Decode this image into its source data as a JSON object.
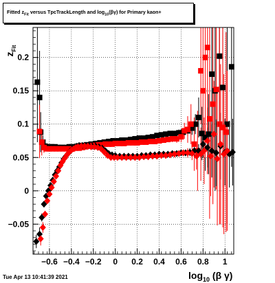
{
  "title": {
    "pre": "Fitted  z",
    "sub1": "Fit",
    "mid": " versus TpcTrackLength and log",
    "sub2": "10",
    "post": "(βγ) for Primary kaon+"
  },
  "timestamp": "Tue Apr 13 10:41:39 2021",
  "chart_data": {
    "type": "scatter",
    "title": "Fitted z_Fit versus TpcTrackLength and log10(βγ) for Primary kaon+",
    "xlabel": "log10(βγ)",
    "ylabel": "z_Fit",
    "xlim": [
      -0.75,
      1.08
    ],
    "ylim": [
      -0.095,
      0.245
    ],
    "xticks": [
      -0.6,
      -0.4,
      -0.2,
      0,
      0.2,
      0.4,
      0.6,
      0.8,
      1
    ],
    "xtick_labels": [
      "−0.6",
      "−0.4",
      "−0.2",
      "0",
      "0.2",
      "0.4",
      "0.6",
      "0.8",
      "1"
    ],
    "yticks": [
      -0.05,
      0,
      0.05,
      0.1,
      0.15,
      0.2
    ],
    "ytick_labels": [
      "−0.05",
      "0",
      "0.05",
      "0.1",
      "0.15",
      "0.2"
    ],
    "grid": true,
    "colors": {
      "black": "#000000",
      "red": "#ff0000"
    },
    "series": [
      {
        "color": "black",
        "marker": "square",
        "x": [
          -0.71,
          -0.69,
          -0.68,
          -0.66,
          -0.64,
          -0.62,
          -0.6,
          -0.58,
          -0.55,
          -0.52,
          -0.5,
          -0.48,
          -0.45,
          -0.42,
          -0.4,
          -0.37,
          -0.34,
          -0.3,
          -0.26,
          -0.22,
          -0.18,
          -0.14,
          -0.1,
          -0.06,
          -0.02,
          0.02,
          0.06,
          0.1,
          0.14,
          0.18,
          0.22,
          0.26,
          0.3,
          0.34,
          0.38,
          0.42,
          0.46,
          0.5,
          0.54,
          0.58,
          0.62,
          0.66,
          0.7,
          0.73,
          0.76,
          0.79,
          0.82,
          0.85,
          0.88,
          0.91,
          0.95,
          0.98,
          1.02,
          1.06
        ],
        "y": [
          0.163,
          0.14,
          0.088,
          0.073,
          0.067,
          0.066,
          0.066,
          0.066,
          0.066,
          0.065,
          0.065,
          0.065,
          0.065,
          0.066,
          0.066,
          0.066,
          0.067,
          0.068,
          0.069,
          0.07,
          0.071,
          0.072,
          0.073,
          0.074,
          0.075,
          0.075,
          0.076,
          0.076,
          0.077,
          0.078,
          0.079,
          0.079,
          0.08,
          0.081,
          0.083,
          0.084,
          0.085,
          0.086,
          0.086,
          0.087,
          0.088,
          0.09,
          0.094,
          0.1,
          0.11,
          0.086,
          0.08,
          0.085,
          0.175,
          0.15,
          0.202,
          0.155,
          0.1,
          0.186
        ],
        "err": [
          0.09,
          0.07,
          0.03,
          0.01,
          0.005,
          0.003,
          0.003,
          0.002,
          0.002,
          0.002,
          0.002,
          0.002,
          0.002,
          0.002,
          0.002,
          0.002,
          0.002,
          0.002,
          0.002,
          0.002,
          0.002,
          0.002,
          0.002,
          0.002,
          0.002,
          0.002,
          0.002,
          0.002,
          0.002,
          0.002,
          0.002,
          0.002,
          0.002,
          0.002,
          0.003,
          0.003,
          0.003,
          0.003,
          0.004,
          0.005,
          0.006,
          0.008,
          0.01,
          0.015,
          0.03,
          0.04,
          0.05,
          0.06,
          0.12,
          0.15,
          0.15,
          0.15,
          0.15,
          0.15
        ]
      },
      {
        "color": "red",
        "marker": "square",
        "x": [
          -0.69,
          -0.67,
          -0.65,
          -0.63,
          -0.6,
          -0.57,
          -0.54,
          -0.51,
          -0.48,
          -0.45,
          -0.42,
          -0.39,
          -0.36,
          -0.33,
          -0.3,
          -0.27,
          -0.24,
          -0.21,
          -0.18,
          -0.15,
          -0.12,
          -0.09,
          -0.06,
          -0.03,
          0.0,
          0.04,
          0.08,
          0.12,
          0.16,
          0.2,
          0.24,
          0.28,
          0.32,
          0.36,
          0.4,
          0.44,
          0.48,
          0.52,
          0.56,
          0.6,
          0.63,
          0.66,
          0.69,
          0.72,
          0.75,
          0.78,
          0.8,
          0.82,
          0.84,
          0.86,
          0.89,
          0.92,
          0.95,
          0.98,
          1.01
        ],
        "y": [
          0.089,
          0.073,
          0.065,
          0.063,
          0.063,
          0.063,
          0.063,
          0.063,
          0.063,
          0.063,
          0.063,
          0.063,
          0.064,
          0.064,
          0.065,
          0.066,
          0.067,
          0.068,
          0.068,
          0.069,
          0.069,
          0.07,
          0.07,
          0.07,
          0.071,
          0.071,
          0.071,
          0.072,
          0.072,
          0.072,
          0.073,
          0.073,
          0.074,
          0.074,
          0.075,
          0.076,
          0.077,
          0.078,
          0.078,
          0.081,
          0.09,
          0.092,
          0.1,
          0.07,
          0.06,
          0.18,
          0.15,
          0.2,
          0.215,
          0.108,
          0.13,
          0.152,
          0.1,
          0.095,
          0.088
        ],
        "err": [
          0.04,
          0.02,
          0.008,
          0.004,
          0.003,
          0.002,
          0.002,
          0.002,
          0.002,
          0.002,
          0.002,
          0.002,
          0.002,
          0.002,
          0.002,
          0.002,
          0.002,
          0.002,
          0.002,
          0.002,
          0.002,
          0.002,
          0.002,
          0.002,
          0.002,
          0.002,
          0.002,
          0.002,
          0.002,
          0.002,
          0.002,
          0.002,
          0.003,
          0.003,
          0.003,
          0.003,
          0.004,
          0.005,
          0.006,
          0.008,
          0.012,
          0.02,
          0.03,
          0.04,
          0.06,
          0.08,
          0.1,
          0.15,
          0.15,
          0.15,
          0.15,
          0.15,
          0.15,
          0.15,
          0.15
        ]
      },
      {
        "color": "black",
        "marker": "diamond",
        "x": [
          -0.72,
          -0.69,
          -0.67,
          -0.65,
          -0.63,
          -0.61,
          -0.59,
          -0.57,
          -0.55,
          -0.53,
          -0.51,
          -0.49,
          -0.47,
          -0.45,
          -0.43,
          -0.41,
          -0.39,
          -0.37,
          -0.35,
          -0.33,
          -0.3,
          -0.27,
          -0.24,
          -0.21,
          -0.18,
          -0.15,
          -0.12,
          -0.09,
          -0.06,
          -0.03,
          0.0,
          0.04,
          0.08,
          0.12,
          0.16,
          0.2,
          0.24,
          0.28,
          0.32,
          0.36,
          0.4,
          0.44,
          0.48,
          0.52,
          0.56,
          0.6,
          0.64,
          0.68,
          0.72,
          0.76,
          0.8,
          0.84,
          0.88,
          0.92,
          0.96,
          1.0,
          1.04,
          1.07
        ],
        "y": [
          -0.076,
          -0.065,
          -0.04,
          -0.02,
          -0.008,
          0.0,
          0.008,
          0.016,
          0.024,
          0.03,
          0.036,
          0.042,
          0.048,
          0.052,
          0.056,
          0.06,
          0.063,
          0.066,
          0.067,
          0.068,
          0.068,
          0.068,
          0.068,
          0.067,
          0.067,
          0.066,
          0.064,
          0.06,
          0.056,
          0.054,
          0.053,
          0.052,
          0.052,
          0.052,
          0.052,
          0.052,
          0.053,
          0.053,
          0.054,
          0.054,
          0.055,
          0.055,
          0.055,
          0.056,
          0.056,
          0.057,
          0.057,
          0.058,
          0.06,
          0.06,
          0.07,
          0.065,
          0.06,
          0.057,
          0.067,
          0.058,
          0.055,
          0.058
        ],
        "err": [
          0.01,
          0.01,
          0.006,
          0.004,
          0.003,
          0.003,
          0.003,
          0.002,
          0.002,
          0.002,
          0.002,
          0.002,
          0.002,
          0.002,
          0.002,
          0.002,
          0.002,
          0.002,
          0.002,
          0.002,
          0.002,
          0.002,
          0.002,
          0.002,
          0.002,
          0.002,
          0.002,
          0.002,
          0.002,
          0.002,
          0.002,
          0.002,
          0.002,
          0.002,
          0.002,
          0.002,
          0.002,
          0.002,
          0.002,
          0.002,
          0.002,
          0.002,
          0.002,
          0.003,
          0.003,
          0.004,
          0.005,
          0.006,
          0.008,
          0.01,
          0.02,
          0.03,
          0.04,
          0.05,
          0.05,
          0.05,
          0.05,
          0.05
        ]
      },
      {
        "color": "red",
        "marker": "diamond",
        "x": [
          -0.68,
          -0.66,
          -0.64,
          -0.62,
          -0.6,
          -0.58,
          -0.56,
          -0.54,
          -0.52,
          -0.5,
          -0.48,
          -0.46,
          -0.44,
          -0.42,
          -0.4,
          -0.38,
          -0.36,
          -0.34,
          -0.31,
          -0.28,
          -0.25,
          -0.22,
          -0.19,
          -0.16,
          -0.13,
          -0.1,
          -0.07,
          -0.04,
          -0.01,
          0.02,
          0.06,
          0.1,
          0.14,
          0.18,
          0.22,
          0.26,
          0.3,
          0.34,
          0.38,
          0.42,
          0.46,
          0.5,
          0.54,
          0.58,
          0.62,
          0.66,
          0.7,
          0.74,
          0.78,
          0.81,
          0.84,
          0.87,
          0.9,
          0.93,
          0.96,
          0.99,
          1.02
        ],
        "y": [
          -0.072,
          -0.055,
          -0.035,
          -0.015,
          -0.005,
          0.005,
          0.014,
          0.022,
          0.03,
          0.038,
          0.044,
          0.049,
          0.054,
          0.058,
          0.061,
          0.063,
          0.065,
          0.066,
          0.067,
          0.067,
          0.067,
          0.066,
          0.066,
          0.065,
          0.063,
          0.058,
          0.053,
          0.05,
          0.05,
          0.05,
          0.05,
          0.05,
          0.05,
          0.05,
          0.05,
          0.051,
          0.051,
          0.052,
          0.052,
          0.053,
          0.053,
          0.054,
          0.055,
          0.056,
          0.057,
          0.057,
          0.056,
          0.052,
          0.055,
          0.06,
          0.075,
          0.052,
          0.085,
          0.048,
          0.07,
          0.055,
          0.06
        ],
        "err": [
          0.01,
          0.008,
          0.005,
          0.004,
          0.003,
          0.003,
          0.002,
          0.002,
          0.002,
          0.002,
          0.002,
          0.002,
          0.002,
          0.002,
          0.002,
          0.002,
          0.002,
          0.002,
          0.002,
          0.002,
          0.002,
          0.002,
          0.002,
          0.002,
          0.002,
          0.002,
          0.002,
          0.002,
          0.002,
          0.002,
          0.002,
          0.002,
          0.002,
          0.002,
          0.002,
          0.002,
          0.002,
          0.002,
          0.002,
          0.002,
          0.003,
          0.003,
          0.004,
          0.004,
          0.005,
          0.007,
          0.01,
          0.02,
          0.04,
          0.05,
          0.05,
          0.06,
          0.08,
          0.1,
          0.12,
          0.12,
          0.12
        ]
      }
    ]
  }
}
